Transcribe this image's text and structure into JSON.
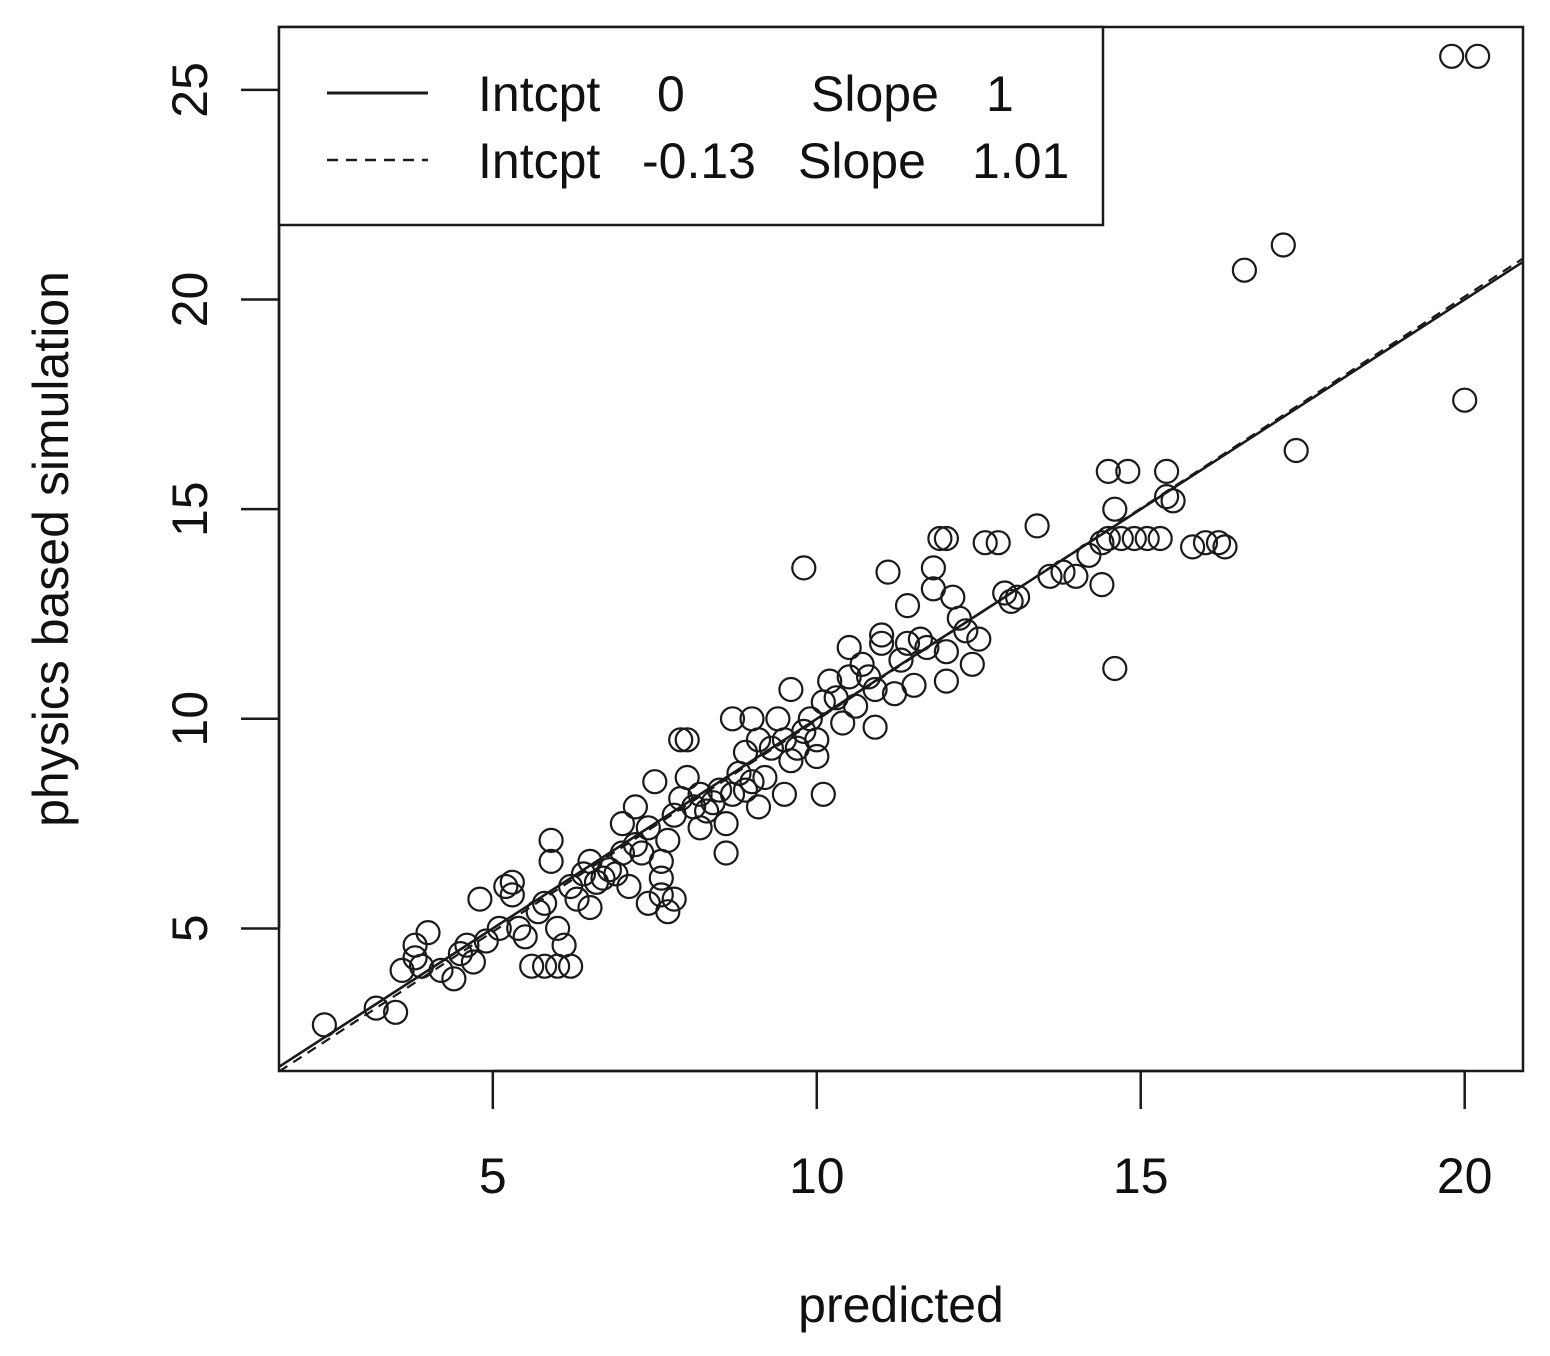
{
  "chart_data": {
    "type": "scatter",
    "title": "",
    "xlabel": "predicted",
    "ylabel": "physics based simulation",
    "xlim": [
      1.7,
      20.9
    ],
    "ylim": [
      1.6,
      26.5
    ],
    "xticks": [
      5,
      10,
      15,
      20
    ],
    "yticks": [
      5,
      10,
      15,
      20,
      25
    ],
    "xtick_labels": [
      "5",
      "10",
      "15",
      "20"
    ],
    "ytick_labels": [
      "5",
      "10",
      "15",
      "20",
      "25"
    ],
    "grid": false,
    "legend_position": "top-left",
    "legend": [
      {
        "line_style": "solid",
        "label_a": "Intcpt",
        "value_a": "0",
        "label_b": "Slope",
        "value_b": "1",
        "intercept": 0,
        "slope": 1
      },
      {
        "line_style": "dashed",
        "label_a": "Intcpt",
        "value_a": "-0.13",
        "label_b": "Slope",
        "value_b": "1.01",
        "intercept": -0.13,
        "slope": 1.01
      }
    ],
    "lines": [
      {
        "style": "solid",
        "intercept": 0,
        "slope": 1
      },
      {
        "style": "dashed",
        "intercept": -0.13,
        "slope": 1.01
      }
    ],
    "points": [
      [
        2.4,
        2.7
      ],
      [
        3.2,
        3.1
      ],
      [
        3.5,
        3.0
      ],
      [
        3.6,
        4.0
      ],
      [
        3.8,
        4.3
      ],
      [
        3.9,
        4.1
      ],
      [
        4.0,
        4.9
      ],
      [
        3.8,
        4.6
      ],
      [
        4.2,
        4.0
      ],
      [
        4.4,
        3.8
      ],
      [
        4.5,
        4.4
      ],
      [
        4.6,
        4.6
      ],
      [
        4.7,
        4.2
      ],
      [
        4.8,
        5.7
      ],
      [
        4.9,
        4.7
      ],
      [
        5.1,
        5.0
      ],
      [
        5.2,
        6.0
      ],
      [
        5.3,
        6.1
      ],
      [
        5.3,
        5.8
      ],
      [
        5.4,
        5.0
      ],
      [
        5.5,
        4.8
      ],
      [
        5.6,
        4.1
      ],
      [
        5.7,
        5.4
      ],
      [
        5.8,
        5.6
      ],
      [
        5.8,
        4.1
      ],
      [
        5.9,
        7.1
      ],
      [
        5.9,
        6.6
      ],
      [
        6.0,
        4.1
      ],
      [
        6.0,
        5.0
      ],
      [
        6.1,
        4.6
      ],
      [
        6.2,
        4.1
      ],
      [
        6.2,
        6.0
      ],
      [
        6.3,
        5.7
      ],
      [
        6.4,
        6.3
      ],
      [
        6.5,
        6.6
      ],
      [
        6.5,
        5.5
      ],
      [
        6.6,
        6.1
      ],
      [
        6.7,
        6.2
      ],
      [
        6.8,
        6.4
      ],
      [
        6.9,
        6.3
      ],
      [
        7.0,
        6.8
      ],
      [
        7.0,
        7.5
      ],
      [
        7.1,
        6.0
      ],
      [
        7.2,
        7.0
      ],
      [
        7.2,
        7.9
      ],
      [
        7.3,
        6.8
      ],
      [
        7.4,
        5.6
      ],
      [
        7.4,
        7.4
      ],
      [
        7.5,
        8.5
      ],
      [
        7.6,
        5.8
      ],
      [
        7.6,
        6.2
      ],
      [
        7.6,
        6.6
      ],
      [
        7.7,
        5.4
      ],
      [
        7.7,
        7.1
      ],
      [
        7.8,
        5.7
      ],
      [
        7.8,
        7.7
      ],
      [
        7.9,
        9.5
      ],
      [
        7.9,
        8.1
      ],
      [
        8.0,
        9.5
      ],
      [
        8.0,
        8.6
      ],
      [
        8.1,
        7.9
      ],
      [
        8.2,
        7.4
      ],
      [
        8.2,
        8.2
      ],
      [
        8.3,
        7.8
      ],
      [
        8.4,
        8.0
      ],
      [
        8.5,
        8.3
      ],
      [
        8.6,
        7.5
      ],
      [
        8.6,
        6.8
      ],
      [
        8.7,
        8.2
      ],
      [
        8.7,
        10.0
      ],
      [
        8.8,
        8.7
      ],
      [
        8.9,
        8.3
      ],
      [
        8.9,
        9.2
      ],
      [
        9.0,
        8.5
      ],
      [
        9.0,
        10.0
      ],
      [
        9.1,
        7.9
      ],
      [
        9.1,
        9.5
      ],
      [
        9.2,
        8.6
      ],
      [
        9.3,
        9.3
      ],
      [
        9.4,
        10.0
      ],
      [
        9.5,
        8.2
      ],
      [
        9.5,
        9.5
      ],
      [
        9.6,
        9.0
      ],
      [
        9.6,
        10.7
      ],
      [
        9.7,
        9.3
      ],
      [
        9.8,
        13.6
      ],
      [
        9.8,
        9.7
      ],
      [
        9.9,
        10.0
      ],
      [
        10.0,
        9.1
      ],
      [
        10.0,
        9.5
      ],
      [
        10.1,
        8.2
      ],
      [
        10.1,
        10.4
      ],
      [
        10.2,
        10.9
      ],
      [
        10.3,
        10.5
      ],
      [
        10.4,
        9.9
      ],
      [
        10.5,
        11.0
      ],
      [
        10.5,
        11.7
      ],
      [
        10.6,
        10.3
      ],
      [
        10.7,
        11.3
      ],
      [
        10.8,
        11.0
      ],
      [
        10.9,
        9.8
      ],
      [
        10.9,
        10.7
      ],
      [
        11.0,
        11.8
      ],
      [
        11.0,
        12.0
      ],
      [
        11.1,
        13.5
      ],
      [
        11.2,
        10.6
      ],
      [
        11.3,
        11.4
      ],
      [
        11.4,
        12.7
      ],
      [
        11.4,
        11.8
      ],
      [
        11.5,
        10.8
      ],
      [
        11.6,
        11.9
      ],
      [
        11.7,
        11.7
      ],
      [
        11.8,
        13.1
      ],
      [
        11.8,
        13.6
      ],
      [
        11.9,
        14.3
      ],
      [
        12.0,
        14.3
      ],
      [
        12.0,
        11.6
      ],
      [
        12.0,
        10.9
      ],
      [
        12.1,
        12.9
      ],
      [
        12.2,
        12.4
      ],
      [
        12.3,
        12.1
      ],
      [
        12.4,
        11.3
      ],
      [
        12.5,
        11.9
      ],
      [
        12.6,
        14.2
      ],
      [
        12.8,
        14.2
      ],
      [
        12.9,
        13.0
      ],
      [
        13.0,
        12.8
      ],
      [
        13.1,
        12.9
      ],
      [
        13.4,
        14.6
      ],
      [
        13.6,
        13.4
      ],
      [
        13.8,
        13.5
      ],
      [
        14.0,
        13.4
      ],
      [
        14.2,
        13.9
      ],
      [
        14.4,
        14.2
      ],
      [
        14.4,
        13.2
      ],
      [
        14.5,
        15.9
      ],
      [
        14.5,
        14.3
      ],
      [
        14.6,
        15.0
      ],
      [
        14.6,
        11.2
      ],
      [
        14.7,
        14.3
      ],
      [
        14.8,
        15.9
      ],
      [
        14.9,
        14.3
      ],
      [
        15.1,
        14.3
      ],
      [
        15.3,
        14.3
      ],
      [
        15.4,
        15.9
      ],
      [
        15.4,
        15.3
      ],
      [
        15.5,
        15.2
      ],
      [
        15.8,
        14.1
      ],
      [
        16.0,
        14.2
      ],
      [
        16.2,
        14.2
      ],
      [
        16.3,
        14.1
      ],
      [
        16.6,
        20.7
      ],
      [
        17.2,
        21.3
      ],
      [
        17.4,
        16.4
      ],
      [
        19.8,
        25.8
      ],
      [
        20.0,
        17.6
      ],
      [
        20.2,
        25.8
      ]
    ]
  }
}
